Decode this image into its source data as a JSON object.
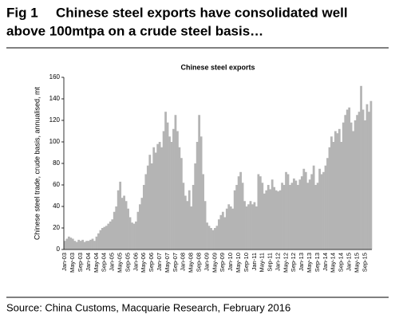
{
  "chart_data": {
    "type": "bar",
    "fig_label": "Fig 1",
    "title": [
      "Chinese steel exports have consolidated well",
      "above 100mtpa on a crude steel basis…"
    ],
    "chart_title": "Chinese steel exports",
    "y_label": "Chinese steel trade, crude basis, annualised, mt",
    "source": "Source: China Customs, Macquarie Research, February 2016",
    "color": "#b4b4b4",
    "ylim": [
      0,
      160
    ],
    "yticks": [
      0,
      20,
      40,
      60,
      80,
      100,
      120,
      140,
      160
    ],
    "categories": [
      "Jan-03",
      null,
      null,
      null,
      "May-03",
      null,
      null,
      null,
      "Sep-03",
      null,
      null,
      null,
      "Jan-04",
      null,
      null,
      null,
      "May-04",
      null,
      null,
      null,
      "Sep-04",
      null,
      null,
      null,
      "Jan-05",
      null,
      null,
      null,
      "May-05",
      null,
      null,
      null,
      "Sep-05",
      null,
      null,
      null,
      "Jan-06",
      null,
      null,
      null,
      "May-06",
      null,
      null,
      null,
      "Sep-06",
      null,
      null,
      null,
      "Jan-07",
      null,
      null,
      null,
      "May-07",
      null,
      null,
      null,
      "Sep-07",
      null,
      null,
      null,
      "Jan-08",
      null,
      null,
      null,
      "May-08",
      null,
      null,
      null,
      "Sep-08",
      null,
      null,
      null,
      "Jan-09",
      null,
      null,
      null,
      "May-09",
      null,
      null,
      null,
      "Sep-09",
      null,
      null,
      null,
      "Jan-10",
      null,
      null,
      null,
      "May-10",
      null,
      null,
      null,
      "Sep-10",
      null,
      null,
      null,
      "Jan-11",
      null,
      null,
      null,
      "May-11",
      null,
      null,
      null,
      "Sep-11",
      null,
      null,
      null,
      "Jan-12",
      null,
      null,
      null,
      "May-12",
      null,
      null,
      null,
      "Sep-12",
      null,
      null,
      null,
      "Jan-13",
      null,
      null,
      null,
      "May-13",
      null,
      null,
      null,
      "Sep-13",
      null,
      null,
      null,
      "Jan-14",
      null,
      null,
      null,
      "May-14",
      null,
      null,
      null,
      "Sep-14",
      null,
      null,
      null,
      "Jan-15",
      null,
      null,
      null,
      "May-15",
      null,
      null,
      null,
      "Sep-15",
      null,
      null,
      null
    ],
    "values": [
      8,
      10,
      12,
      11,
      10,
      8,
      7,
      9,
      8,
      9,
      7,
      8,
      8,
      9,
      10,
      8,
      12,
      15,
      18,
      20,
      21,
      22,
      24,
      26,
      28,
      35,
      40,
      55,
      63,
      48,
      50,
      45,
      38,
      30,
      25,
      24,
      26,
      35,
      42,
      48,
      60,
      70,
      78,
      88,
      80,
      95,
      90,
      98,
      100,
      95,
      110,
      128,
      118,
      105,
      100,
      112,
      125,
      110,
      95,
      85,
      62,
      50,
      45,
      55,
      40,
      60,
      80,
      100,
      125,
      105,
      70,
      45,
      25,
      22,
      20,
      18,
      20,
      22,
      28,
      32,
      35,
      30,
      38,
      42,
      40,
      38,
      55,
      60,
      68,
      72,
      62,
      45,
      40,
      42,
      45,
      42,
      44,
      40,
      70,
      68,
      62,
      52,
      55,
      60,
      56,
      65,
      58,
      55,
      54,
      55,
      62,
      60,
      72,
      70,
      60,
      62,
      66,
      64,
      60,
      65,
      68,
      75,
      72,
      62,
      65,
      70,
      78,
      60,
      62,
      75,
      70,
      72,
      78,
      85,
      95,
      105,
      100,
      110,
      108,
      112,
      100,
      118,
      125,
      130,
      132,
      118,
      110,
      120,
      125,
      128,
      152,
      130,
      120,
      135,
      128,
      138
    ]
  }
}
